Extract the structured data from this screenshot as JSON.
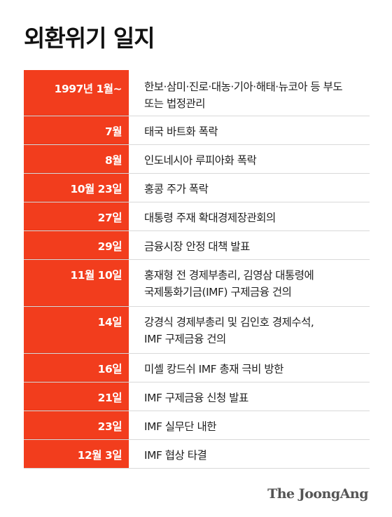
{
  "title": "외환위기 일지",
  "rows": [
    {
      "date": "1997년 1월~",
      "lines": [
        "한보·삼미·진로·대농·기아·해태·뉴코아 등 부도",
        "또는 법정관리"
      ]
    },
    {
      "date": "7월",
      "lines": [
        "태국 바트화 폭락"
      ]
    },
    {
      "date": "8월",
      "lines": [
        "인도네시아 루피아화 폭락"
      ]
    },
    {
      "date": "10월 23일",
      "lines": [
        "홍콩 주가 폭락"
      ]
    },
    {
      "date": "27일",
      "lines": [
        "대통령 주재 확대경제장관회의"
      ]
    },
    {
      "date": "29일",
      "lines": [
        "금융시장 안정 대책 발표"
      ]
    },
    {
      "date": "11월 10일",
      "lines": [
        "홍재형 전 경제부총리, 김영삼 대통령에",
        "국제통화기금(IMF) 구제금융 건의"
      ]
    },
    {
      "date": "14일",
      "lines": [
        "강경식 경제부총리 및 김인호 경제수석,",
        "IMF 구제금융 건의"
      ]
    },
    {
      "date": "16일",
      "lines": [
        "미셸 캉드쉬 IMF 총재 극비 방한"
      ]
    },
    {
      "date": "21일",
      "lines": [
        "IMF 구제금융 신청 발표"
      ]
    },
    {
      "date": "23일",
      "lines": [
        "IMF 실무단 내한"
      ]
    },
    {
      "date": "12월 3일",
      "lines": [
        "IMF 협상 타결"
      ]
    }
  ],
  "logo": "The JoongAng",
  "colors": {
    "accent": "#f23d1d"
  }
}
